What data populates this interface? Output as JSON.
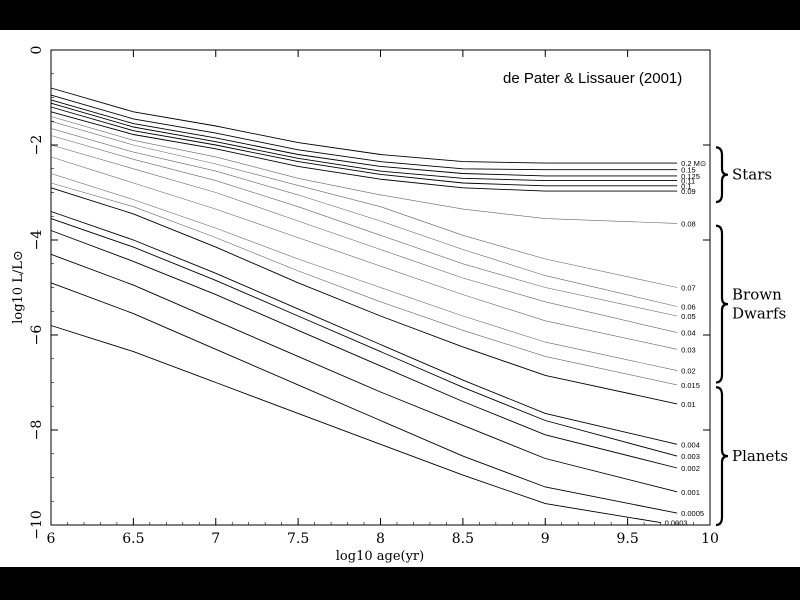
{
  "chart_data": {
    "type": "line",
    "title": "",
    "credit": "de Pater & Lissauer (2001)",
    "xlabel": "log10 age(yr)",
    "ylabel": "log10 L/L⊙",
    "xlim": [
      6,
      10
    ],
    "ylim": [
      -10,
      0
    ],
    "xticks": [
      "6",
      "6.5",
      "7",
      "7.5",
      "8",
      "8.5",
      "9",
      "9.5",
      "10"
    ],
    "yticks": [
      "0",
      "−2",
      "−4",
      "−6",
      "−8",
      "−10"
    ],
    "grid": false,
    "groups": [
      {
        "label": "Stars",
        "range": [
          -2.05,
          -3.2
        ]
      },
      {
        "label": "Brown Dwarfs",
        "range": [
          -3.7,
          -7.0
        ]
      },
      {
        "label": "Planets",
        "range": [
          -7.1,
          -10.0
        ]
      }
    ],
    "series": [
      {
        "name": "0.2 M⊙",
        "values": [
          [
            6.0,
            -0.8
          ],
          [
            6.5,
            -1.3
          ],
          [
            7.0,
            -1.6
          ],
          [
            7.5,
            -1.95
          ],
          [
            8.0,
            -2.2
          ],
          [
            8.5,
            -2.35
          ],
          [
            9.0,
            -2.38
          ],
          [
            9.8,
            -2.38
          ]
        ]
      },
      {
        "name": "0.15",
        "values": [
          [
            6.0,
            -0.95
          ],
          [
            6.5,
            -1.45
          ],
          [
            7.0,
            -1.75
          ],
          [
            7.5,
            -2.1
          ],
          [
            8.0,
            -2.35
          ],
          [
            8.5,
            -2.5
          ],
          [
            9.0,
            -2.52
          ],
          [
            9.8,
            -2.52
          ]
        ]
      },
      {
        "name": "0.125",
        "values": [
          [
            6.0,
            -1.05
          ],
          [
            6.5,
            -1.55
          ],
          [
            7.0,
            -1.85
          ],
          [
            7.5,
            -2.2
          ],
          [
            8.0,
            -2.45
          ],
          [
            8.5,
            -2.6
          ],
          [
            9.0,
            -2.65
          ],
          [
            9.8,
            -2.65
          ]
        ]
      },
      {
        "name": "0.11",
        "values": [
          [
            6.0,
            -1.12
          ],
          [
            6.5,
            -1.62
          ],
          [
            7.0,
            -1.93
          ],
          [
            7.5,
            -2.28
          ],
          [
            8.0,
            -2.55
          ],
          [
            8.5,
            -2.7
          ],
          [
            9.0,
            -2.75
          ],
          [
            9.8,
            -2.75
          ]
        ]
      },
      {
        "name": "0.1",
        "values": [
          [
            6.0,
            -1.2
          ],
          [
            6.5,
            -1.7
          ],
          [
            7.0,
            -2.0
          ],
          [
            7.5,
            -2.35
          ],
          [
            8.0,
            -2.62
          ],
          [
            8.5,
            -2.8
          ],
          [
            9.0,
            -2.86
          ],
          [
            9.8,
            -2.86
          ]
        ]
      },
      {
        "name": "0.09",
        "values": [
          [
            6.0,
            -1.3
          ],
          [
            6.5,
            -1.78
          ],
          [
            7.0,
            -2.08
          ],
          [
            7.5,
            -2.45
          ],
          [
            8.0,
            -2.72
          ],
          [
            8.5,
            -2.9
          ],
          [
            9.0,
            -2.97
          ],
          [
            9.8,
            -2.97
          ]
        ]
      },
      {
        "name": "0.08",
        "values": [
          [
            6.0,
            -1.4
          ],
          [
            6.5,
            -1.9
          ],
          [
            7.0,
            -2.25
          ],
          [
            7.5,
            -2.7
          ],
          [
            8.0,
            -3.05
          ],
          [
            8.5,
            -3.35
          ],
          [
            9.0,
            -3.55
          ],
          [
            9.8,
            -3.65
          ]
        ]
      },
      {
        "name": "0.07",
        "values": [
          [
            6.0,
            -1.5
          ],
          [
            6.5,
            -2.0
          ],
          [
            7.0,
            -2.4
          ],
          [
            7.5,
            -2.85
          ],
          [
            8.0,
            -3.3
          ],
          [
            8.5,
            -3.9
          ],
          [
            9.0,
            -4.4
          ],
          [
            9.8,
            -5.0
          ]
        ]
      },
      {
        "name": "0.06",
        "values": [
          [
            6.0,
            -1.65
          ],
          [
            6.5,
            -2.15
          ],
          [
            7.0,
            -2.55
          ],
          [
            7.5,
            -3.05
          ],
          [
            8.0,
            -3.6
          ],
          [
            8.5,
            -4.2
          ],
          [
            9.0,
            -4.75
          ],
          [
            9.8,
            -5.4
          ]
        ]
      },
      {
        "name": "0.05",
        "values": [
          [
            6.0,
            -1.8
          ],
          [
            6.5,
            -2.3
          ],
          [
            7.0,
            -2.75
          ],
          [
            7.5,
            -3.3
          ],
          [
            8.0,
            -3.9
          ],
          [
            8.5,
            -4.5
          ],
          [
            9.0,
            -5.0
          ],
          [
            9.8,
            -5.6
          ]
        ]
      },
      {
        "name": "0.04",
        "values": [
          [
            6.0,
            -2.0
          ],
          [
            6.5,
            -2.5
          ],
          [
            7.0,
            -3.0
          ],
          [
            7.5,
            -3.6
          ],
          [
            8.0,
            -4.2
          ],
          [
            8.5,
            -4.8
          ],
          [
            9.0,
            -5.3
          ],
          [
            9.8,
            -5.95
          ]
        ]
      },
      {
        "name": "0.03",
        "values": [
          [
            6.0,
            -2.25
          ],
          [
            6.5,
            -2.8
          ],
          [
            7.0,
            -3.35
          ],
          [
            7.5,
            -3.95
          ],
          [
            8.0,
            -4.55
          ],
          [
            8.5,
            -5.15
          ],
          [
            9.0,
            -5.7
          ],
          [
            9.8,
            -6.3
          ]
        ]
      },
      {
        "name": "0.02",
        "values": [
          [
            6.0,
            -2.6
          ],
          [
            6.5,
            -3.15
          ],
          [
            7.0,
            -3.75
          ],
          [
            7.5,
            -4.4
          ],
          [
            8.0,
            -5.0
          ],
          [
            8.5,
            -5.6
          ],
          [
            9.0,
            -6.15
          ],
          [
            9.8,
            -6.75
          ]
        ]
      },
      {
        "name": "0.015",
        "values": [
          [
            6.0,
            -2.8
          ],
          [
            6.5,
            -3.3
          ],
          [
            7.0,
            -3.95
          ],
          [
            7.5,
            -4.65
          ],
          [
            8.0,
            -5.3
          ],
          [
            8.5,
            -5.9
          ],
          [
            9.0,
            -6.45
          ],
          [
            9.8,
            -7.05
          ]
        ]
      },
      {
        "name": "0.01",
        "values": [
          [
            6.0,
            -2.9
          ],
          [
            6.5,
            -3.45
          ],
          [
            7.0,
            -4.15
          ],
          [
            7.5,
            -4.9
          ],
          [
            8.0,
            -5.6
          ],
          [
            8.5,
            -6.25
          ],
          [
            9.0,
            -6.85
          ],
          [
            9.8,
            -7.45
          ]
        ]
      },
      {
        "name": "0.004",
        "values": [
          [
            6.0,
            -3.4
          ],
          [
            6.5,
            -4.0
          ],
          [
            7.0,
            -4.7
          ],
          [
            7.5,
            -5.45
          ],
          [
            8.0,
            -6.2
          ],
          [
            8.5,
            -6.95
          ],
          [
            9.0,
            -7.65
          ],
          [
            9.8,
            -8.3
          ]
        ]
      },
      {
        "name": "0.003",
        "values": [
          [
            6.0,
            -3.55
          ],
          [
            6.5,
            -4.15
          ],
          [
            7.0,
            -4.85
          ],
          [
            7.5,
            -5.6
          ],
          [
            8.0,
            -6.35
          ],
          [
            8.5,
            -7.1
          ],
          [
            9.0,
            -7.8
          ],
          [
            9.8,
            -8.55
          ]
        ]
      },
      {
        "name": "0.002",
        "values": [
          [
            6.0,
            -3.8
          ],
          [
            6.5,
            -4.45
          ],
          [
            7.0,
            -5.15
          ],
          [
            7.5,
            -5.9
          ],
          [
            8.0,
            -6.65
          ],
          [
            8.5,
            -7.4
          ],
          [
            9.0,
            -8.1
          ],
          [
            9.8,
            -8.8
          ]
        ]
      },
      {
        "name": "0.001",
        "values": [
          [
            6.0,
            -4.3
          ],
          [
            6.5,
            -4.95
          ],
          [
            7.0,
            -5.7
          ],
          [
            7.5,
            -6.45
          ],
          [
            8.0,
            -7.2
          ],
          [
            8.5,
            -7.9
          ],
          [
            9.0,
            -8.6
          ],
          [
            9.8,
            -9.3
          ]
        ]
      },
      {
        "name": "0.0005",
        "values": [
          [
            6.0,
            -4.9
          ],
          [
            6.5,
            -5.55
          ],
          [
            7.0,
            -6.3
          ],
          [
            7.5,
            -7.05
          ],
          [
            8.0,
            -7.8
          ],
          [
            8.5,
            -8.55
          ],
          [
            9.0,
            -9.2
          ],
          [
            9.8,
            -9.75
          ]
        ]
      },
      {
        "name": "0.0003",
        "values": [
          [
            6.0,
            -5.8
          ],
          [
            6.5,
            -6.35
          ],
          [
            7.0,
            -7.0
          ],
          [
            7.5,
            -7.65
          ],
          [
            8.0,
            -8.3
          ],
          [
            8.5,
            -8.95
          ],
          [
            9.0,
            -9.55
          ],
          [
            9.7,
            -9.95
          ]
        ]
      }
    ]
  }
}
